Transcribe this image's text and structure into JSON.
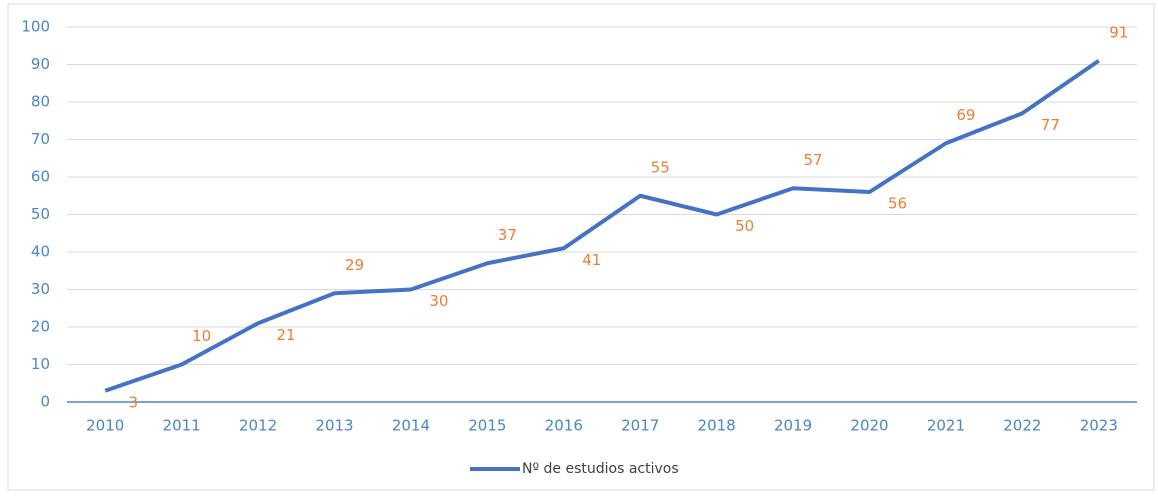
{
  "chart_data": {
    "type": "line",
    "categories": [
      "2010",
      "2011",
      "2012",
      "2013",
      "2014",
      "2015",
      "2016",
      "2017",
      "2018",
      "2019",
      "2020",
      "2021",
      "2022",
      "2023"
    ],
    "series": [
      {
        "name": "Nº de estudios activos",
        "color": "#4472c4",
        "values": [
          3,
          10,
          21,
          29,
          30,
          37,
          41,
          55,
          50,
          57,
          56,
          69,
          77,
          91
        ]
      }
    ],
    "ylim": [
      0,
      100
    ],
    "yticks": [
      0,
      10,
      20,
      30,
      40,
      50,
      60,
      70,
      80,
      90,
      100
    ],
    "grid": true,
    "legend": "bottom",
    "label_color": "#ed7d31"
  }
}
